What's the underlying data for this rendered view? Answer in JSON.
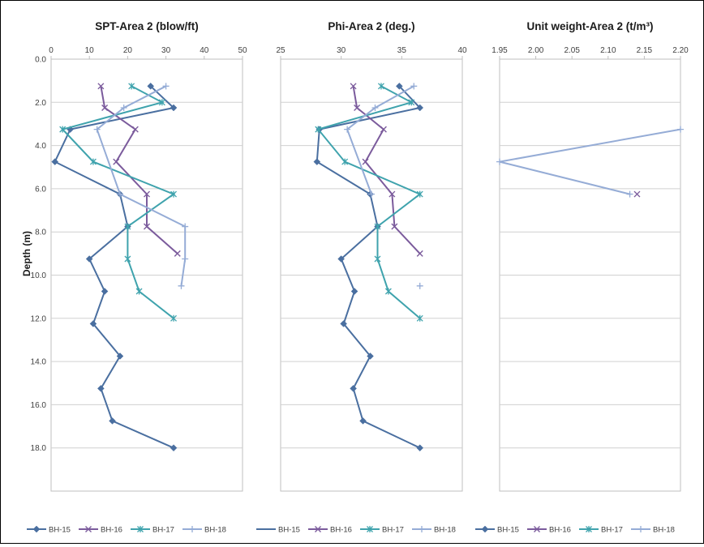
{
  "chart_data": {
    "type": "line",
    "ylabel": "Depth (m)",
    "ylim": [
      0,
      20
    ],
    "y_inverted": true,
    "y_ticks": [
      "0.0",
      "2.0",
      "4.0",
      "6.0",
      "8.0",
      "10.0",
      "12.0",
      "14.0",
      "16.0",
      "18.0"
    ],
    "legend_placement": "bottom",
    "grid": "horizontal",
    "colors": {
      "BH-15": "#4a6fa0",
      "BH-16": "#7b5b9c",
      "BH-17": "#3fa3ad",
      "BH-18": "#95acd6"
    },
    "markers": {
      "BH-15": "diamond",
      "BH-16": "x",
      "BH-17": "asterisk",
      "BH-18": "plus"
    },
    "panels": [
      {
        "title": "SPT-Area 2 (blow/ft)",
        "xlim": [
          0,
          50
        ],
        "x_ticks": [
          "0",
          "10",
          "20",
          "30",
          "40",
          "50"
        ],
        "series": [
          {
            "name": "BH-15",
            "points": [
              [
                26,
                1.25
              ],
              [
                32,
                2.25
              ],
              [
                5,
                3.25
              ],
              [
                1,
                4.75
              ],
              [
                18,
                6.25
              ],
              [
                20,
                7.75
              ],
              [
                10,
                9.25
              ],
              [
                14,
                10.75
              ],
              [
                11,
                12.25
              ],
              [
                18,
                13.75
              ],
              [
                13,
                15.25
              ],
              [
                16,
                16.75
              ],
              [
                32,
                18.0
              ]
            ]
          },
          {
            "name": "BH-16",
            "points": [
              [
                13,
                1.25
              ],
              [
                14,
                2.25
              ],
              [
                22,
                3.25
              ],
              [
                17,
                4.75
              ],
              [
                25,
                6.25
              ],
              [
                25,
                7.75
              ],
              [
                33,
                9.0
              ]
            ]
          },
          {
            "name": "BH-17",
            "points": [
              [
                21,
                1.25
              ],
              [
                29,
                2.0
              ],
              [
                3,
                3.25
              ],
              [
                11,
                4.75
              ],
              [
                32,
                6.25
              ],
              [
                20,
                7.75
              ],
              [
                20,
                9.25
              ],
              [
                23,
                10.75
              ],
              [
                32,
                12.0
              ]
            ]
          },
          {
            "name": "BH-18",
            "points": [
              [
                30,
                1.25
              ],
              [
                19,
                2.25
              ],
              [
                12,
                3.25
              ],
              [
                18,
                6.25
              ],
              [
                35,
                7.75
              ],
              [
                35,
                9.25
              ],
              [
                34,
                10.5
              ]
            ]
          }
        ]
      },
      {
        "title": "Phi-Area 2 (deg.)",
        "xlim": [
          25,
          40
        ],
        "x_ticks": [
          "25",
          "30",
          "35",
          "40"
        ],
        "series": [
          {
            "name": "BH-15",
            "points": [
              [
                34.8,
                1.25
              ],
              [
                36.5,
                2.25
              ],
              [
                28.2,
                3.25
              ],
              [
                28,
                4.75
              ],
              [
                32.4,
                6.25
              ],
              [
                33,
                7.75
              ],
              [
                30,
                9.25
              ],
              [
                31.1,
                10.75
              ],
              [
                30.2,
                12.25
              ],
              [
                32.4,
                13.75
              ],
              [
                31,
                15.25
              ],
              [
                31.8,
                16.75
              ],
              [
                36.5,
                18.0
              ]
            ]
          },
          {
            "name": "BH-16",
            "points": [
              [
                31,
                1.25
              ],
              [
                31.3,
                2.25
              ],
              [
                33.5,
                3.25
              ],
              [
                32,
                4.75
              ],
              [
                34.2,
                6.25
              ],
              [
                34.4,
                7.75
              ],
              [
                36.5,
                9.0
              ]
            ]
          },
          {
            "name": "BH-17",
            "points": [
              [
                33.3,
                1.25
              ],
              [
                35.8,
                2.0
              ],
              [
                28.1,
                3.25
              ],
              [
                30.3,
                4.75
              ],
              [
                36.5,
                6.25
              ],
              [
                33,
                7.75
              ],
              [
                33,
                9.25
              ],
              [
                33.9,
                10.75
              ],
              [
                36.5,
                12.0
              ]
            ]
          },
          {
            "name": "BH-18",
            "points": [
              [
                36,
                1.25
              ],
              [
                32.8,
                2.25
              ],
              [
                30.5,
                3.25
              ],
              [
                32.5,
                6.25
              ],
              [
                null,
                null
              ],
              [
                36.5,
                10.5
              ]
            ]
          }
        ]
      },
      {
        "title": "Unit weight-Area 2 (t/m³)",
        "xlim": [
          1.95,
          2.2
        ],
        "x_ticks": [
          "1.95",
          "2.00",
          "2.05",
          "2.10",
          "2.15",
          "2.20"
        ],
        "series": [
          {
            "name": "BH-15",
            "points": []
          },
          {
            "name": "BH-16",
            "points": [
              [
                2.14,
                6.25
              ]
            ]
          },
          {
            "name": "BH-17",
            "points": []
          },
          {
            "name": "BH-18",
            "points": [
              [
                2.2,
                3.25
              ],
              [
                1.95,
                4.75
              ],
              [
                2.13,
                6.25
              ]
            ]
          }
        ]
      }
    ]
  }
}
